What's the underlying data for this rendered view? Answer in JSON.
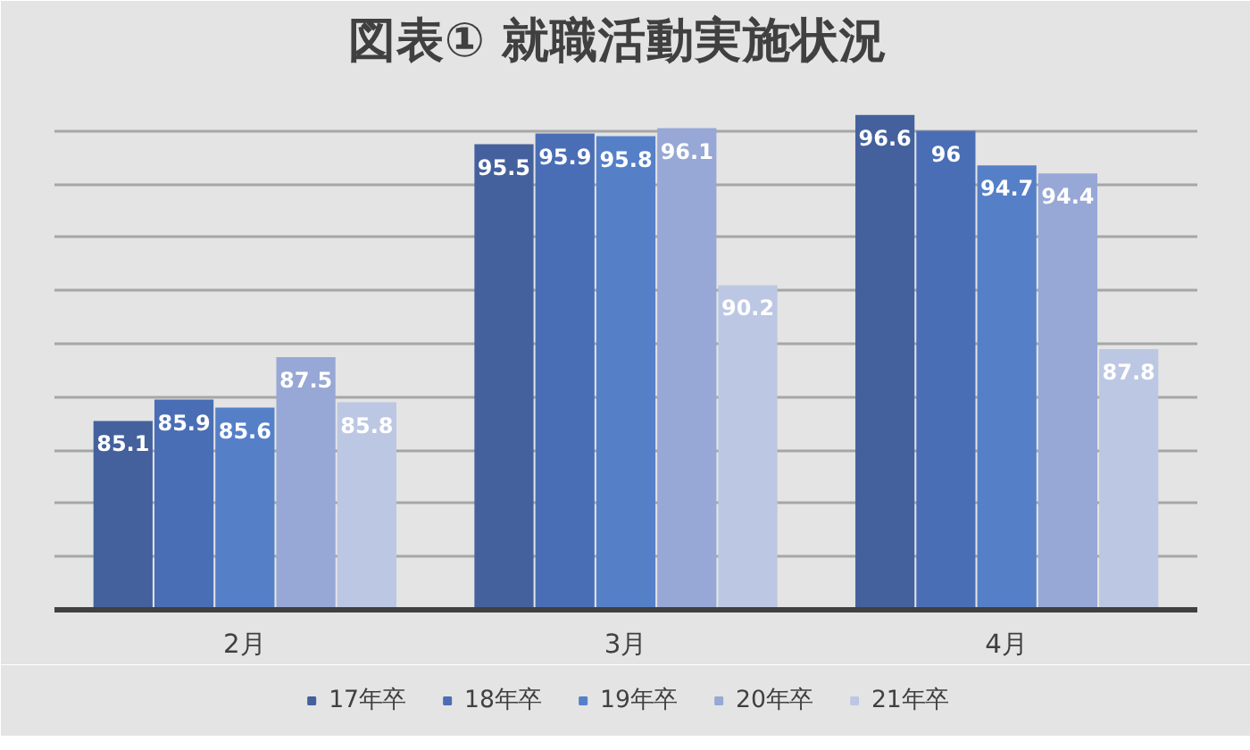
{
  "chart_data": {
    "type": "bar",
    "title": "図表①  就職活動実施状況",
    "categories": [
      "2月",
      "3月",
      "4月"
    ],
    "series": [
      {
        "name": "17年卒",
        "color": "#44619d",
        "values": [
          85.1,
          95.5,
          96.6
        ]
      },
      {
        "name": "18年卒",
        "color": "#4a6eb5",
        "values": [
          85.9,
          95.9,
          96
        ]
      },
      {
        "name": "19年卒",
        "color": "#5580c8",
        "values": [
          85.6,
          95.8,
          94.7
        ]
      },
      {
        "name": "20年卒",
        "color": "#97a8d6",
        "values": [
          87.5,
          96.1,
          94.4
        ]
      },
      {
        "name": "21年卒",
        "color": "#bcc7e3",
        "values": [
          85.8,
          90.2,
          87.8
        ]
      }
    ],
    "ylim": [
      78,
      98
    ],
    "yticks": [
      {
        "value": 78,
        "label": null
      },
      {
        "value": 80,
        "label": null
      },
      {
        "value": 82,
        "label": null
      },
      {
        "value": 84,
        "label": null
      },
      {
        "value": 86,
        "label": null
      },
      {
        "value": 88,
        "label": null
      },
      {
        "value": 90,
        "label": null
      },
      {
        "value": 92,
        "label": null
      },
      {
        "value": 94,
        "label": null
      },
      {
        "value": 96,
        "label": null
      },
      {
        "value": 98,
        "label": null
      }
    ],
    "tick_labels": "x",
    "grid": "y",
    "legend": "bottom",
    "data_labels": true
  }
}
